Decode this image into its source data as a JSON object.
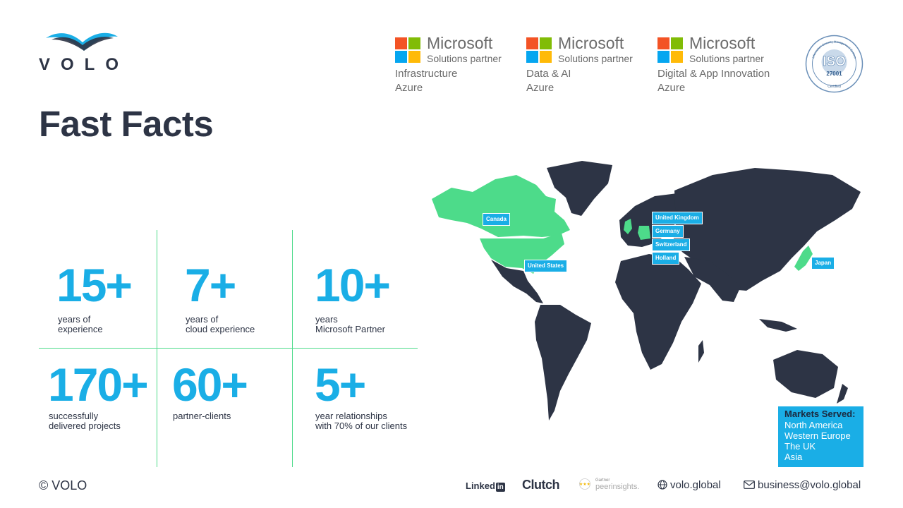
{
  "brand": {
    "logo_text": "VOLO"
  },
  "partners": [
    {
      "name": "Microsoft",
      "subtitle": "Solutions partner",
      "category": "Infrastructure",
      "sub_category": "Azure"
    },
    {
      "name": "Microsoft",
      "subtitle": "Solutions partner",
      "category": "Data & AI",
      "sub_category": "Azure"
    },
    {
      "name": "Microsoft",
      "subtitle": "Solutions partner",
      "category": "Digital & App Innovation",
      "sub_category": "Azure"
    }
  ],
  "ms_colors": [
    "#f35325",
    "#81bc06",
    "#05a6f0",
    "#ffba08"
  ],
  "iso": {
    "top_text": "Information Security Management System",
    "label": "ISO",
    "number": "27001",
    "bottom_text": "Certified"
  },
  "page_title": "Fast Facts",
  "stats": [
    {
      "value": "15+",
      "label": "years of\nexperience"
    },
    {
      "value": "7+",
      "label": "years of\ncloud experience"
    },
    {
      "value": "10+",
      "label": "years\nMicrosoft Partner"
    },
    {
      "value": "170+",
      "label": "successfully\ndelivered projects"
    },
    {
      "value": "60+",
      "label": "partner-clients"
    },
    {
      "value": "5+",
      "label": "year relationships\nwith 70% of our clients"
    }
  ],
  "map_labels": [
    "Canada",
    "United States",
    "United Kingdom",
    "Germany",
    "Switzerland",
    "Holland",
    "Japan"
  ],
  "markets": {
    "title": "Markets Served:",
    "items": [
      "North America",
      "Western Europe",
      "The UK",
      "Asia"
    ]
  },
  "colors": {
    "accent_blue": "#1aaee6",
    "accent_green": "#4ddb8a",
    "map_dark": "#2d3445"
  },
  "footer": {
    "copyright": "© VOLO",
    "linkedin": "Linked",
    "linkedin_in": "in",
    "clutch": "Clutch",
    "gartner_small": "Gartner",
    "gartner_peer": "peerinsights.",
    "website": "volo.global",
    "email": "business@volo.global"
  }
}
